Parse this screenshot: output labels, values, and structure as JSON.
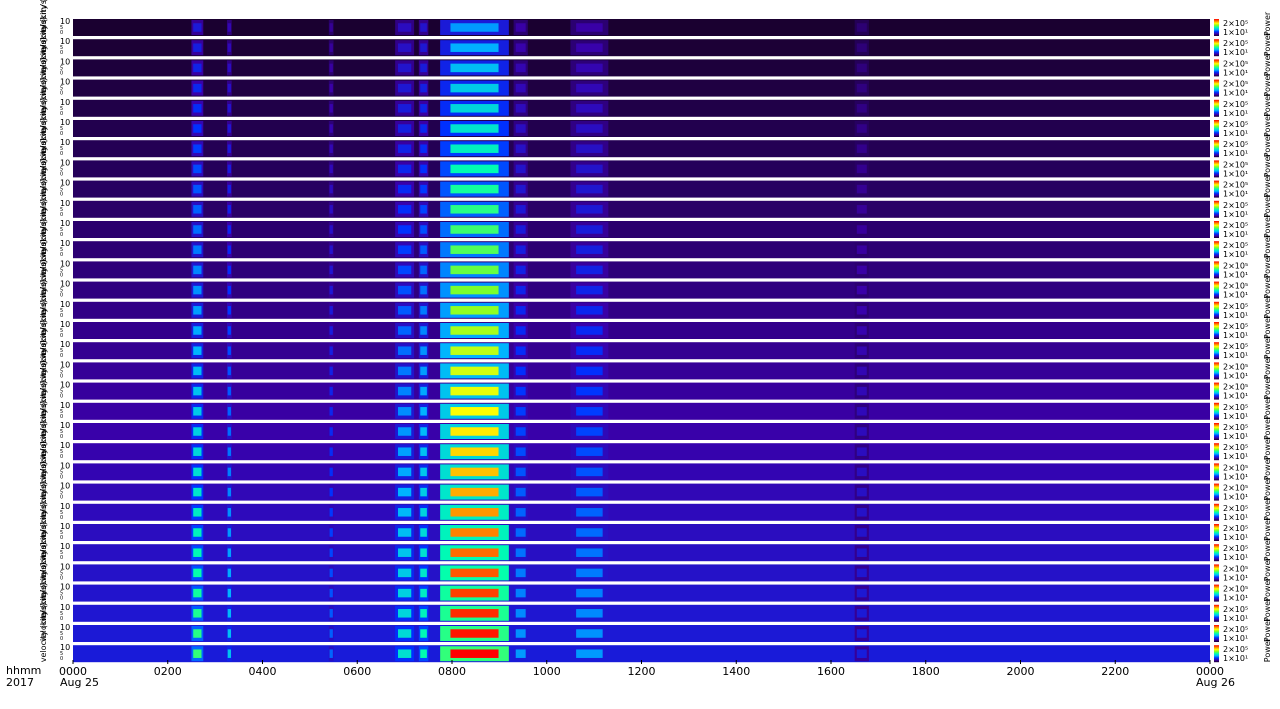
{
  "chart_data": {
    "type": "heatmap",
    "panel_count": 32,
    "panel_ylabel": "velocity (km/s)",
    "panel_yticks": [
      "10",
      "5",
      "0"
    ],
    "colorbar_label": "Power",
    "colorbar_ticks": [
      "2×10⁵",
      "1×10¹"
    ],
    "colorbar_scale": "log",
    "colormap": [
      "#1a0030",
      "#3a00a8",
      "#0030ff",
      "#00b4ff",
      "#00ffb0",
      "#7dff2a",
      "#ffff00",
      "#ff8000",
      "#ff0000"
    ],
    "x_range_hours": [
      0,
      24
    ],
    "xticks": [
      "0000",
      "0200",
      "0400",
      "0600",
      "0800",
      "1000",
      "1200",
      "1400",
      "1600",
      "1800",
      "2000",
      "2200",
      "0000"
    ],
    "x_start_date": "Aug 25",
    "x_end_date": "Aug 26",
    "x_row_label": "hhmm",
    "year_label": "2017",
    "activity_bursts_hours": [
      {
        "start": 2.5,
        "end": 2.75,
        "peak": 0.55
      },
      {
        "start": 3.25,
        "end": 3.35,
        "peak": 0.4
      },
      {
        "start": 5.4,
        "end": 5.5,
        "peak": 0.3
      },
      {
        "start": 6.8,
        "end": 7.2,
        "peak": 0.45
      },
      {
        "start": 7.3,
        "end": 7.5,
        "peak": 0.5
      },
      {
        "start": 7.75,
        "end": 9.2,
        "peak": 1.0
      },
      {
        "start": 9.3,
        "end": 9.6,
        "peak": 0.35
      },
      {
        "start": 10.5,
        "end": 11.3,
        "peak": 0.35
      },
      {
        "start": 16.5,
        "end": 16.8,
        "peak": 0.2
      }
    ],
    "background_level_top": 0.0,
    "background_level_bottom": 0.28
  }
}
